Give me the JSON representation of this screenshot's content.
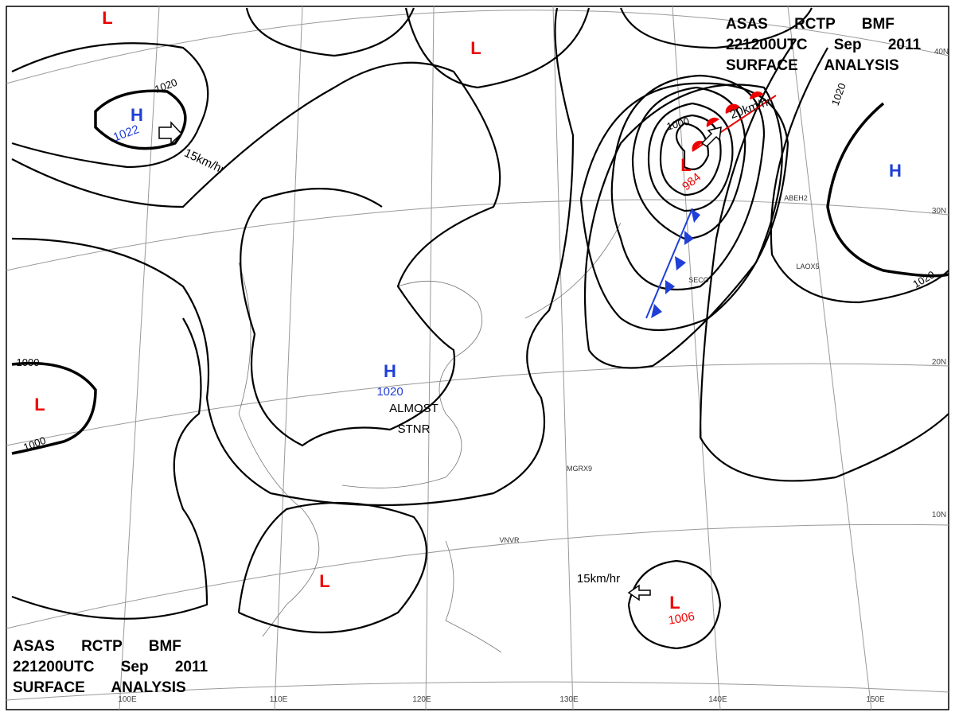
{
  "header": {
    "title_lines": [
      "ASAS RCTP BMF",
      "221200UTC Sep 2011",
      "SURFACE ANALYSIS"
    ]
  },
  "systems": [
    {
      "label": "L"
    },
    {
      "label": "H",
      "pressure": "1022"
    },
    {
      "label": "L"
    },
    {
      "label": "L",
      "pressure": "984"
    },
    {
      "label": "H"
    },
    {
      "label": "H",
      "pressure": "1020"
    },
    {
      "label": "L"
    },
    {
      "label": "L"
    },
    {
      "label": "L",
      "pressure": "1006"
    }
  ],
  "isobar_labels": [
    "1020",
    "1000",
    "1020",
    "1020",
    "1000",
    "1000"
  ],
  "motion_labels": [
    "15km/hr",
    "20km/hr",
    "15km/hr"
  ],
  "annotations": [
    "ALMOST",
    "STNR"
  ],
  "longitude_labels": [
    "100E",
    "110E",
    "120E",
    "130E",
    "140E",
    "150E"
  ],
  "latitude_labels": [
    "40N",
    "30N",
    "20N",
    "10N"
  ],
  "station_ids": [
    "MGRX9",
    "VNVR",
    "SECO",
    "LAOX5",
    "ABEH2"
  ]
}
